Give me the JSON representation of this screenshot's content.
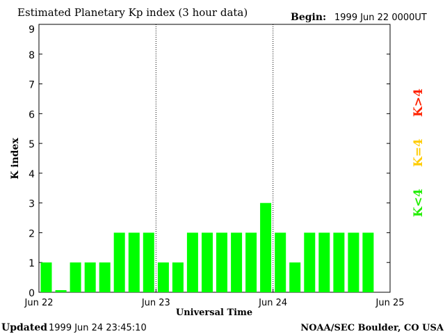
{
  "chart_data": {
    "type": "bar",
    "title": "Estimated Planetary Kp index (3 hour data)",
    "begin_label": "Begin:",
    "begin_value": "1999 Jun 22 0000UT",
    "xlabel": "Universal Time",
    "ylabel": "K index",
    "ylim": [
      0,
      9
    ],
    "yticks": [
      "0",
      "1",
      "2",
      "3",
      "4",
      "5",
      "6",
      "7",
      "8",
      "9"
    ],
    "xticks": [
      "Jun 22",
      "Jun 23",
      "Jun 24",
      "Jun 25"
    ],
    "values": [
      1,
      0.07,
      1,
      1,
      1,
      2,
      2,
      2,
      1,
      1,
      2,
      2,
      2,
      2,
      2,
      3,
      2,
      1,
      2,
      2,
      2,
      2,
      2
    ],
    "day_dividers": [
      "Jun 23",
      "Jun 24"
    ],
    "grid": false,
    "legend": [
      {
        "label": "K>4",
        "color": "#ff2200"
      },
      {
        "label": "K=4",
        "color": "#ffcc00"
      },
      {
        "label": "K<4",
        "color": "#22ee00"
      }
    ],
    "bar_color": "#00ff00"
  },
  "footer": {
    "updated_label": "Updated",
    "updated_value": "1999 Jun 24 23:45:10",
    "source": "NOAA/SEC Boulder, CO USA"
  }
}
